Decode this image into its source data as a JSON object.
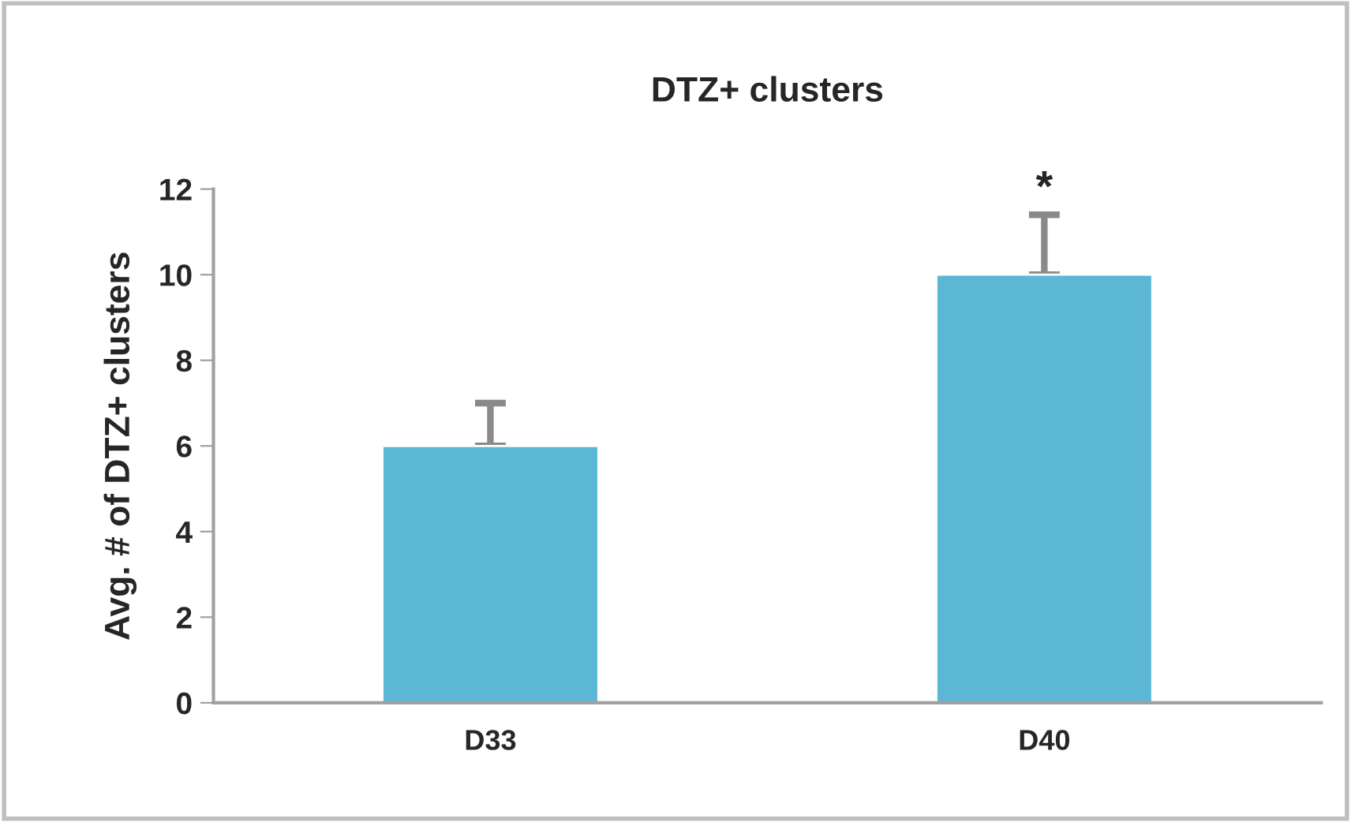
{
  "chart_data": {
    "type": "bar",
    "title": "DTZ+ clusters",
    "ylabel": "Avg. # of DTZ+ clusters",
    "categories": [
      "D33",
      "D40"
    ],
    "values": [
      6,
      10
    ],
    "errors": [
      [
        6,
        7
      ],
      [
        10,
        11.4
      ]
    ],
    "color": "#5bb7d3",
    "ylim": [
      0,
      12
    ],
    "yticks": [
      0,
      2,
      4,
      6,
      8,
      10,
      12
    ],
    "annotations": [
      {
        "text": "*",
        "x": "D40",
        "y": 11.4
      }
    ],
    "grid": false,
    "legend": false
  }
}
